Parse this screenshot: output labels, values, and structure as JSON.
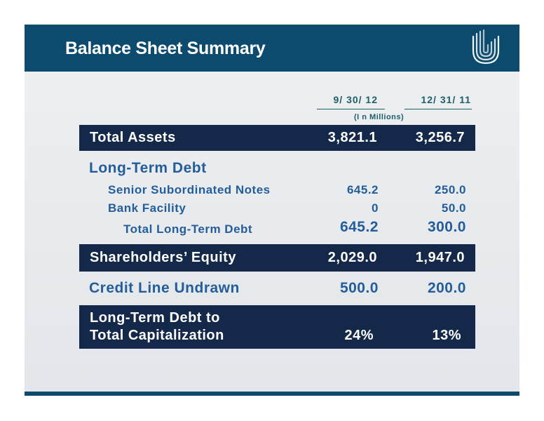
{
  "title": "Balance Sheet Summary",
  "columns": {
    "col1": "9/ 30/ 12",
    "col2": "12/ 31/ 11",
    "units": "(I n Millions)"
  },
  "rows": {
    "total_assets": {
      "label": "Total Assets",
      "v1": "3,821.1",
      "v2": "3,256.7"
    },
    "ltd_heading": "Long-Term Debt",
    "senior_notes": {
      "label": "Senior Subordinated Notes",
      "v1": "645.2",
      "v2": "250.0"
    },
    "bank_facility": {
      "label": "Bank Facility",
      "v1": "0",
      "v2": "50.0"
    },
    "total_ltd": {
      "label": "Total Long-Term Debt",
      "v1": "645.2",
      "v2": "300.0"
    },
    "equity": {
      "label": "Shareholders’ Equity",
      "v1": "2,029.0",
      "v2": "1,947.0"
    },
    "credit_line": {
      "label": "Credit Line Undrawn",
      "v1": "500.0",
      "v2": "200.0"
    },
    "ratio": {
      "label_line1": "Long-Term Debt to",
      "label_line2": "Total Capitalization",
      "v1": "24%",
      "v2": "13%"
    }
  },
  "colors": {
    "header": "#0c4b6e",
    "band": "#14284a",
    "text_blue": "#235d9a",
    "teal": "#1d5e6a"
  }
}
